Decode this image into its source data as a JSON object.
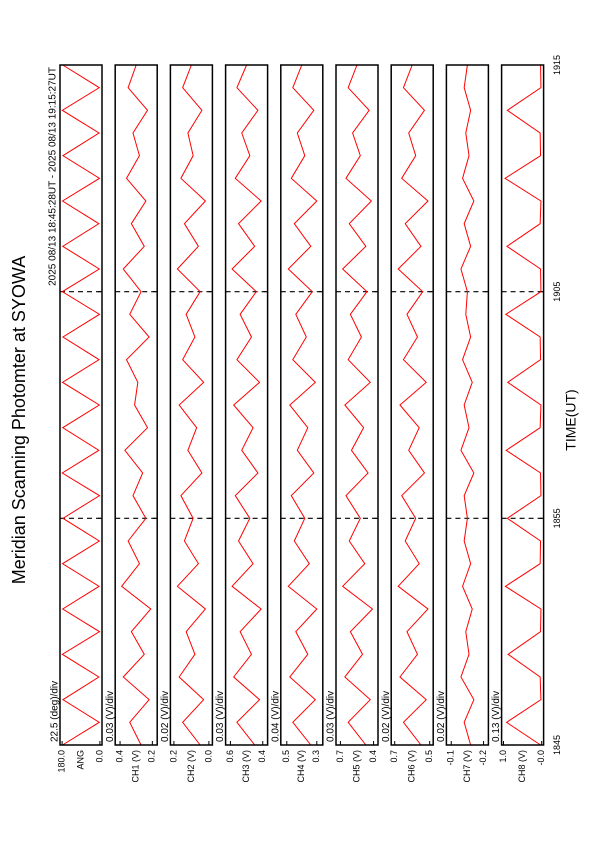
{
  "title": "Meridian Scanning Photomter at SYOWA",
  "subtitle": "2025 08/13 18:45:28UT - 2025 08/13 19:15:27UT",
  "xlabel": "TIME(UT)",
  "x": [
    0,
    1,
    2,
    3,
    4,
    5,
    6,
    7,
    8,
    9,
    10,
    11,
    12,
    13,
    14,
    15,
    16,
    17,
    18,
    19,
    20,
    21,
    22,
    23,
    24,
    25,
    26,
    27,
    28,
    29,
    30
  ],
  "xlim": [
    0,
    30
  ],
  "xticks": [
    {
      "value": 0,
      "label": "1845"
    },
    {
      "value": 10,
      "label": "1855"
    },
    {
      "value": 20,
      "label": "1905"
    },
    {
      "value": 30,
      "label": "1915"
    }
  ],
  "chart_data": [
    {
      "type": "line",
      "ylabel": "ANG",
      "scale": "22.5 (deg)/div",
      "color": "#ff0000",
      "ylim": [
        -10,
        190
      ],
      "yticks": [
        {
          "value": 180,
          "label": "180.0"
        },
        {
          "value": 0,
          "label": "0.0"
        }
      ],
      "values": [
        178,
        3,
        176,
        5,
        179,
        2,
        177,
        4,
        178,
        3,
        176,
        2,
        179,
        5,
        177,
        3,
        178,
        4,
        176,
        2,
        179,
        3,
        177,
        5,
        178,
        2,
        176,
        4,
        179,
        3,
        177
      ]
    },
    {
      "type": "line",
      "ylabel": "CH1 (V)",
      "scale": "0.03 (V)/div",
      "color": "#ff0000",
      "ylim": [
        0.17,
        0.43
      ],
      "yticks": [
        0.4,
        0.2
      ],
      "values": [
        0.27,
        0.34,
        0.22,
        0.38,
        0.25,
        0.33,
        0.21,
        0.39,
        0.28,
        0.35,
        0.24,
        0.32,
        0.26,
        0.37,
        0.23,
        0.31,
        0.29,
        0.36,
        0.22,
        0.34,
        0.27,
        0.38,
        0.25,
        0.33,
        0.24,
        0.36,
        0.28,
        0.32,
        0.23,
        0.35,
        0.3
      ]
    },
    {
      "type": "line",
      "ylabel": "CH2 (V)",
      "scale": "0.02 (V)/div",
      "color": "#ff0000",
      "ylim": [
        -0.02,
        0.22
      ],
      "yticks": [
        0.2,
        {
          "value": 0,
          "label": "0.0"
        }
      ],
      "values": [
        0.05,
        0.15,
        0.03,
        0.17,
        0.08,
        0.13,
        0.02,
        0.18,
        0.06,
        0.14,
        0.09,
        0.16,
        0.04,
        0.12,
        0.07,
        0.17,
        0.03,
        0.15,
        0.08,
        0.13,
        0.05,
        0.18,
        0.06,
        0.14,
        0.02,
        0.16,
        0.09,
        0.12,
        0.04,
        0.15,
        0.1
      ]
    },
    {
      "type": "line",
      "ylabel": "CH3 (V)",
      "scale": "0.03 (V)/div",
      "color": "#ff0000",
      "ylim": [
        0.37,
        0.63
      ],
      "yticks": [
        0.6,
        0.4
      ],
      "values": [
        0.45,
        0.56,
        0.42,
        0.58,
        0.47,
        0.54,
        0.41,
        0.59,
        0.46,
        0.55,
        0.48,
        0.57,
        0.43,
        0.53,
        0.46,
        0.58,
        0.42,
        0.56,
        0.47,
        0.54,
        0.44,
        0.59,
        0.45,
        0.55,
        0.41,
        0.57,
        0.48,
        0.53,
        0.43,
        0.56,
        0.5
      ]
    },
    {
      "type": "line",
      "ylabel": "CH4 (V)",
      "scale": "0.04 (V)/div",
      "color": "#ff0000",
      "ylim": [
        0.26,
        0.54
      ],
      "yticks": [
        0.5,
        0.3
      ],
      "values": [
        0.34,
        0.46,
        0.31,
        0.48,
        0.36,
        0.44,
        0.3,
        0.49,
        0.35,
        0.45,
        0.38,
        0.47,
        0.32,
        0.43,
        0.36,
        0.48,
        0.31,
        0.46,
        0.37,
        0.44,
        0.33,
        0.49,
        0.34,
        0.45,
        0.3,
        0.47,
        0.38,
        0.43,
        0.32,
        0.46,
        0.4
      ]
    },
    {
      "type": "line",
      "ylabel": "CH5 (V)",
      "scale": "0.03 (V)/div",
      "color": "#ff0000",
      "ylim": [
        0.36,
        0.74
      ],
      "yticks": [
        0.7,
        0.4
      ],
      "values": [
        0.47,
        0.63,
        0.43,
        0.66,
        0.5,
        0.61,
        0.41,
        0.68,
        0.48,
        0.62,
        0.52,
        0.65,
        0.45,
        0.6,
        0.49,
        0.66,
        0.43,
        0.63,
        0.51,
        0.61,
        0.46,
        0.68,
        0.47,
        0.62,
        0.42,
        0.65,
        0.52,
        0.59,
        0.44,
        0.63,
        0.55
      ]
    },
    {
      "type": "line",
      "ylabel": "CH6 (V)",
      "scale": "0.02 (V)/div",
      "color": "#ff0000",
      "ylim": [
        0.48,
        0.72
      ],
      "yticks": [
        0.7,
        0.5
      ],
      "values": [
        0.55,
        0.65,
        0.52,
        0.67,
        0.57,
        0.63,
        0.51,
        0.68,
        0.56,
        0.64,
        0.58,
        0.66,
        0.53,
        0.62,
        0.56,
        0.67,
        0.52,
        0.65,
        0.57,
        0.63,
        0.54,
        0.68,
        0.55,
        0.64,
        0.51,
        0.66,
        0.58,
        0.62,
        0.53,
        0.65,
        0.6
      ]
    },
    {
      "type": "line",
      "ylabel": "CH7 (V)",
      "scale": "0.02 (V)/div",
      "color": "#ff0000",
      "ylim": [
        -0.215,
        -0.085
      ],
      "yticks": [
        -0.1,
        -0.2
      ],
      "values": [
        -0.16,
        -0.14,
        -0.17,
        -0.13,
        -0.155,
        -0.145,
        -0.165,
        -0.135,
        -0.16,
        -0.14,
        -0.15,
        -0.14,
        -0.17,
        -0.13,
        -0.155,
        -0.14,
        -0.165,
        -0.135,
        -0.16,
        -0.145,
        -0.15,
        -0.13,
        -0.16,
        -0.14,
        -0.17,
        -0.135,
        -0.155,
        -0.145,
        -0.16,
        -0.14,
        -0.15
      ]
    },
    {
      "type": "line",
      "ylabel": "CH8 (V)",
      "scale": "0.13 (V)/div",
      "color": "#ff0000",
      "ylim": [
        -0.05,
        1.05
      ],
      "yticks": [
        {
          "value": 1,
          "label": "1.0"
        },
        {
          "value": 0,
          "label": "-0.0"
        }
      ],
      "values": [
        0.03,
        0.92,
        0.02,
        0.04,
        0.88,
        0.03,
        0.02,
        0.95,
        0.04,
        0.03,
        0.9,
        0.02,
        0.03,
        0.93,
        0.04,
        0.02,
        0.89,
        0.03,
        0.04,
        0.94,
        0.02,
        0.03,
        0.91,
        0.04,
        0.02,
        0.96,
        0.03,
        0.04,
        0.9,
        0.02,
        0.03
      ]
    }
  ]
}
